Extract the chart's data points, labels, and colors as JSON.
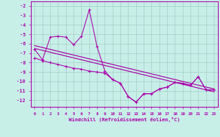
{
  "xlabel": "Windchill (Refroidissement éolien,°C)",
  "background_color": "#c8eee8",
  "line_color": "#aa00aa",
  "xlim": [
    -0.5,
    23.5
  ],
  "ylim": [
    -12.7,
    -1.5
  ],
  "yticks": [
    -12,
    -11,
    -10,
    -9,
    -8,
    -7,
    -6,
    -5,
    -4,
    -3,
    -2
  ],
  "xticks": [
    0,
    1,
    2,
    3,
    4,
    5,
    6,
    7,
    8,
    9,
    10,
    11,
    12,
    13,
    14,
    15,
    16,
    17,
    18,
    19,
    20,
    21,
    22,
    23
  ],
  "x_data": [
    0,
    1,
    2,
    3,
    4,
    5,
    6,
    7,
    8,
    9,
    10,
    11,
    12,
    13,
    14,
    15,
    16,
    17,
    18,
    19,
    20,
    21,
    22,
    23
  ],
  "y_jagged": [
    -6.6,
    -7.7,
    -5.3,
    -5.2,
    -5.3,
    -6.1,
    -5.2,
    -2.4,
    -6.3,
    -8.9,
    -9.8,
    -10.2,
    -11.6,
    -12.2,
    -11.3,
    -11.3,
    -10.8,
    -10.6,
    -10.1,
    -10.2,
    -10.4,
    -9.5,
    -10.9,
    -10.9
  ],
  "y_reg1": [
    -6.5,
    -6.7,
    -6.9,
    -7.1,
    -7.3,
    -7.5,
    -7.7,
    -7.9,
    -8.1,
    -8.3,
    -8.5,
    -8.7,
    -8.9,
    -9.1,
    -9.3,
    -9.5,
    -9.7,
    -9.9,
    -10.1,
    -10.3,
    -10.5,
    -10.7,
    -10.9,
    -11.1
  ],
  "y_reg2": [
    -6.2,
    -6.4,
    -6.6,
    -6.8,
    -7.0,
    -7.2,
    -7.4,
    -7.6,
    -7.8,
    -8.0,
    -8.2,
    -8.4,
    -8.6,
    -8.8,
    -9.0,
    -9.2,
    -9.4,
    -9.6,
    -9.8,
    -10.0,
    -10.2,
    -10.4,
    -10.6,
    -10.8
  ],
  "y_lower": [
    -7.5,
    -7.8,
    -8.0,
    -8.2,
    -8.4,
    -8.6,
    -8.7,
    -8.9,
    -9.0,
    -9.1,
    -9.8,
    -10.2,
    -11.6,
    -12.2,
    -11.3,
    -11.3,
    -10.8,
    -10.6,
    -10.1,
    -10.2,
    -10.4,
    -9.5,
    -10.9,
    -10.9
  ]
}
